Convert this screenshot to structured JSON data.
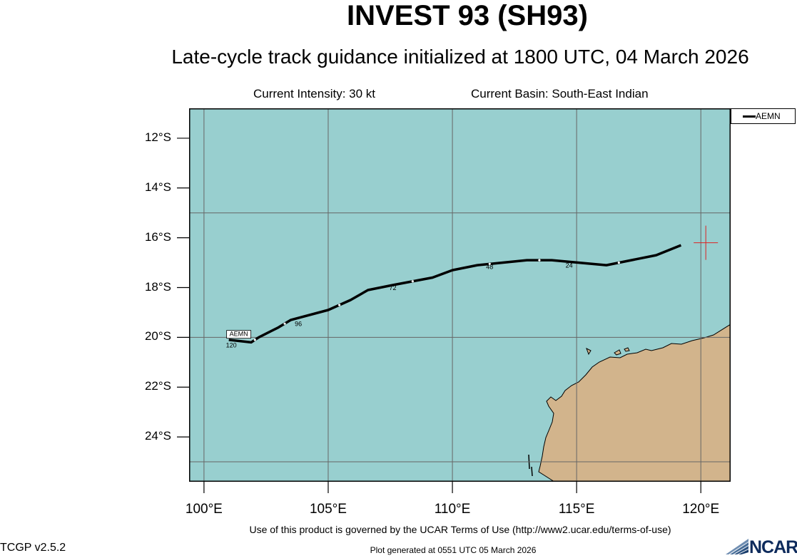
{
  "header": {
    "title": "INVEST 93 (SH93)",
    "subtitle": "Late-cycle track guidance initialized at 1800 UTC, 04 March 2026",
    "intensity": "Current Intensity: 30 kt",
    "basin": "Current Basin: South-East Indian"
  },
  "map": {
    "lon_range": [
      99.4,
      121.2
    ],
    "lat_range": [
      -25.8,
      -10.8
    ],
    "gridlines": {
      "lon": [
        100,
        105,
        110,
        115,
        120
      ],
      "lat": [
        -15,
        -20,
        -25
      ]
    },
    "colors": {
      "ocean": "#98cfcf",
      "land": "#d2b48c",
      "grid": "#666666",
      "track": "#000000",
      "marker": "#dd2222"
    },
    "lat_labels": [
      "12°S",
      "14°S",
      "16°S",
      "18°S",
      "20°S",
      "22°S",
      "24°S"
    ],
    "lon_labels": [
      "100°E",
      "105°E",
      "110°E",
      "115°E",
      "120°E"
    ],
    "current_position": {
      "lon": 120.2,
      "lat": -16.2
    }
  },
  "legend": {
    "model": "AEMN"
  },
  "track": {
    "name": "AEMN",
    "points": [
      [
        119.2,
        -16.3
      ],
      [
        118.2,
        -16.7
      ],
      [
        117.2,
        -16.9
      ],
      [
        116.2,
        -17.1
      ],
      [
        115.1,
        -17.0
      ],
      [
        114.0,
        -16.9
      ],
      [
        113.0,
        -16.9
      ],
      [
        112.0,
        -17.0
      ],
      [
        111.0,
        -17.1
      ],
      [
        110.0,
        -17.3
      ],
      [
        109.2,
        -17.6
      ],
      [
        107.6,
        -17.9
      ],
      [
        106.6,
        -18.1
      ],
      [
        105.9,
        -18.5
      ],
      [
        105.0,
        -18.9
      ],
      [
        103.5,
        -19.3
      ],
      [
        103.0,
        -19.6
      ],
      [
        102.2,
        -20.0
      ],
      [
        101.9,
        -20.2
      ],
      [
        101.0,
        -20.1
      ]
    ],
    "labels": [
      {
        "text": "24",
        "lon": 114.7,
        "lat": -17.2
      },
      {
        "text": "48",
        "lon": 111.5,
        "lat": -17.25
      },
      {
        "text": "72",
        "lon": 107.6,
        "lat": -18.1
      },
      {
        "text": "96",
        "lon": 103.8,
        "lat": -19.55
      },
      {
        "text": "120",
        "lon": 101.1,
        "lat": -20.4
      }
    ],
    "tag": {
      "text": "AEMN",
      "lon": 101.4,
      "lat": -19.95
    }
  },
  "footer": {
    "terms": "Use of this product is governed by the UCAR Terms of Use (http://www2.ucar.edu/terms-of-use)",
    "generated": "Plot generated at 0551 UTC   05 March 2026",
    "version": "TCGP v2.5.2",
    "logo": "NCAR"
  }
}
